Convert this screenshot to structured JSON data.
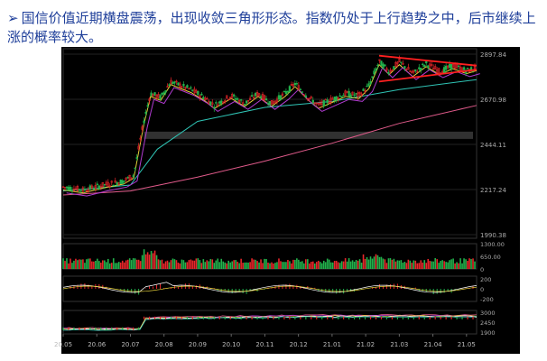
{
  "caption": {
    "bullet": "➢",
    "text": "国信价值近期横盘震荡，出现收敛三角形形态。指数仍处于上行趋势之中，后市继续上涨的概率较大。"
  },
  "chart_data": {
    "type": "line",
    "style": "candlestick with moving averages (dark theme)",
    "x_ticks": [
      "20.05",
      "20.06",
      "20.07",
      "20.08",
      "20.09",
      "20.10",
      "20.11",
      "20.12",
      "21.01",
      "21.02",
      "21.03",
      "21.04",
      "21.05"
    ],
    "main_panel": {
      "y_ticks": [
        "2897.84",
        "2670.98",
        "2444.11",
        "2217.24",
        "1990.38"
      ],
      "ylim": [
        1990.38,
        2897.84
      ],
      "price_path": [
        {
          "x": 0,
          "y": 2230
        },
        {
          "x": 0.6,
          "y": 2215
        },
        {
          "x": 1.2,
          "y": 2240
        },
        {
          "x": 1.8,
          "y": 2260
        },
        {
          "x": 2.1,
          "y": 2290
        },
        {
          "x": 2.4,
          "y": 2560
        },
        {
          "x": 2.6,
          "y": 2700
        },
        {
          "x": 2.9,
          "y": 2680
        },
        {
          "x": 3.2,
          "y": 2760
        },
        {
          "x": 3.5,
          "y": 2740
        },
        {
          "x": 3.8,
          "y": 2720
        },
        {
          "x": 4.2,
          "y": 2680
        },
        {
          "x": 4.5,
          "y": 2640
        },
        {
          "x": 5.0,
          "y": 2690
        },
        {
          "x": 5.4,
          "y": 2650
        },
        {
          "x": 5.8,
          "y": 2700
        },
        {
          "x": 6.2,
          "y": 2650
        },
        {
          "x": 6.6,
          "y": 2700
        },
        {
          "x": 6.9,
          "y": 2750
        },
        {
          "x": 7.3,
          "y": 2680
        },
        {
          "x": 7.6,
          "y": 2640
        },
        {
          "x": 8.0,
          "y": 2670
        },
        {
          "x": 8.4,
          "y": 2700
        },
        {
          "x": 8.8,
          "y": 2690
        },
        {
          "x": 9.1,
          "y": 2740
        },
        {
          "x": 9.4,
          "y": 2860
        },
        {
          "x": 9.7,
          "y": 2810
        },
        {
          "x": 10.0,
          "y": 2860
        },
        {
          "x": 10.4,
          "y": 2800
        },
        {
          "x": 10.8,
          "y": 2850
        },
        {
          "x": 11.2,
          "y": 2810
        },
        {
          "x": 11.6,
          "y": 2840
        },
        {
          "x": 12.0,
          "y": 2815
        },
        {
          "x": 12.3,
          "y": 2830
        }
      ],
      "ma_long": [
        {
          "x": 0,
          "y": 2190
        },
        {
          "x": 2,
          "y": 2210
        },
        {
          "x": 4,
          "y": 2280
        },
        {
          "x": 6,
          "y": 2360
        },
        {
          "x": 8,
          "y": 2450
        },
        {
          "x": 10,
          "y": 2550
        },
        {
          "x": 12.3,
          "y": 2640
        }
      ],
      "ma_mid": [
        {
          "x": 0,
          "y": 2210
        },
        {
          "x": 2,
          "y": 2240
        },
        {
          "x": 2.8,
          "y": 2420
        },
        {
          "x": 4,
          "y": 2560
        },
        {
          "x": 6,
          "y": 2630
        },
        {
          "x": 8,
          "y": 2660
        },
        {
          "x": 10,
          "y": 2720
        },
        {
          "x": 12.3,
          "y": 2770
        }
      ],
      "triangle_upper": [
        {
          "x": 9.4,
          "y": 2890
        },
        {
          "x": 12.3,
          "y": 2840
        }
      ],
      "triangle_lower": [
        {
          "x": 9.4,
          "y": 2760
        },
        {
          "x": 12.3,
          "y": 2820
        }
      ]
    },
    "volume_panel": {
      "y_ticks": [
        "1300.00",
        "650.00",
        "0"
      ]
    },
    "macd_panel": {
      "y_ticks": [
        "200",
        "0",
        "-200"
      ]
    },
    "index_panel": {
      "y_ticks": [
        "3000",
        "2450",
        "1900"
      ]
    }
  }
}
